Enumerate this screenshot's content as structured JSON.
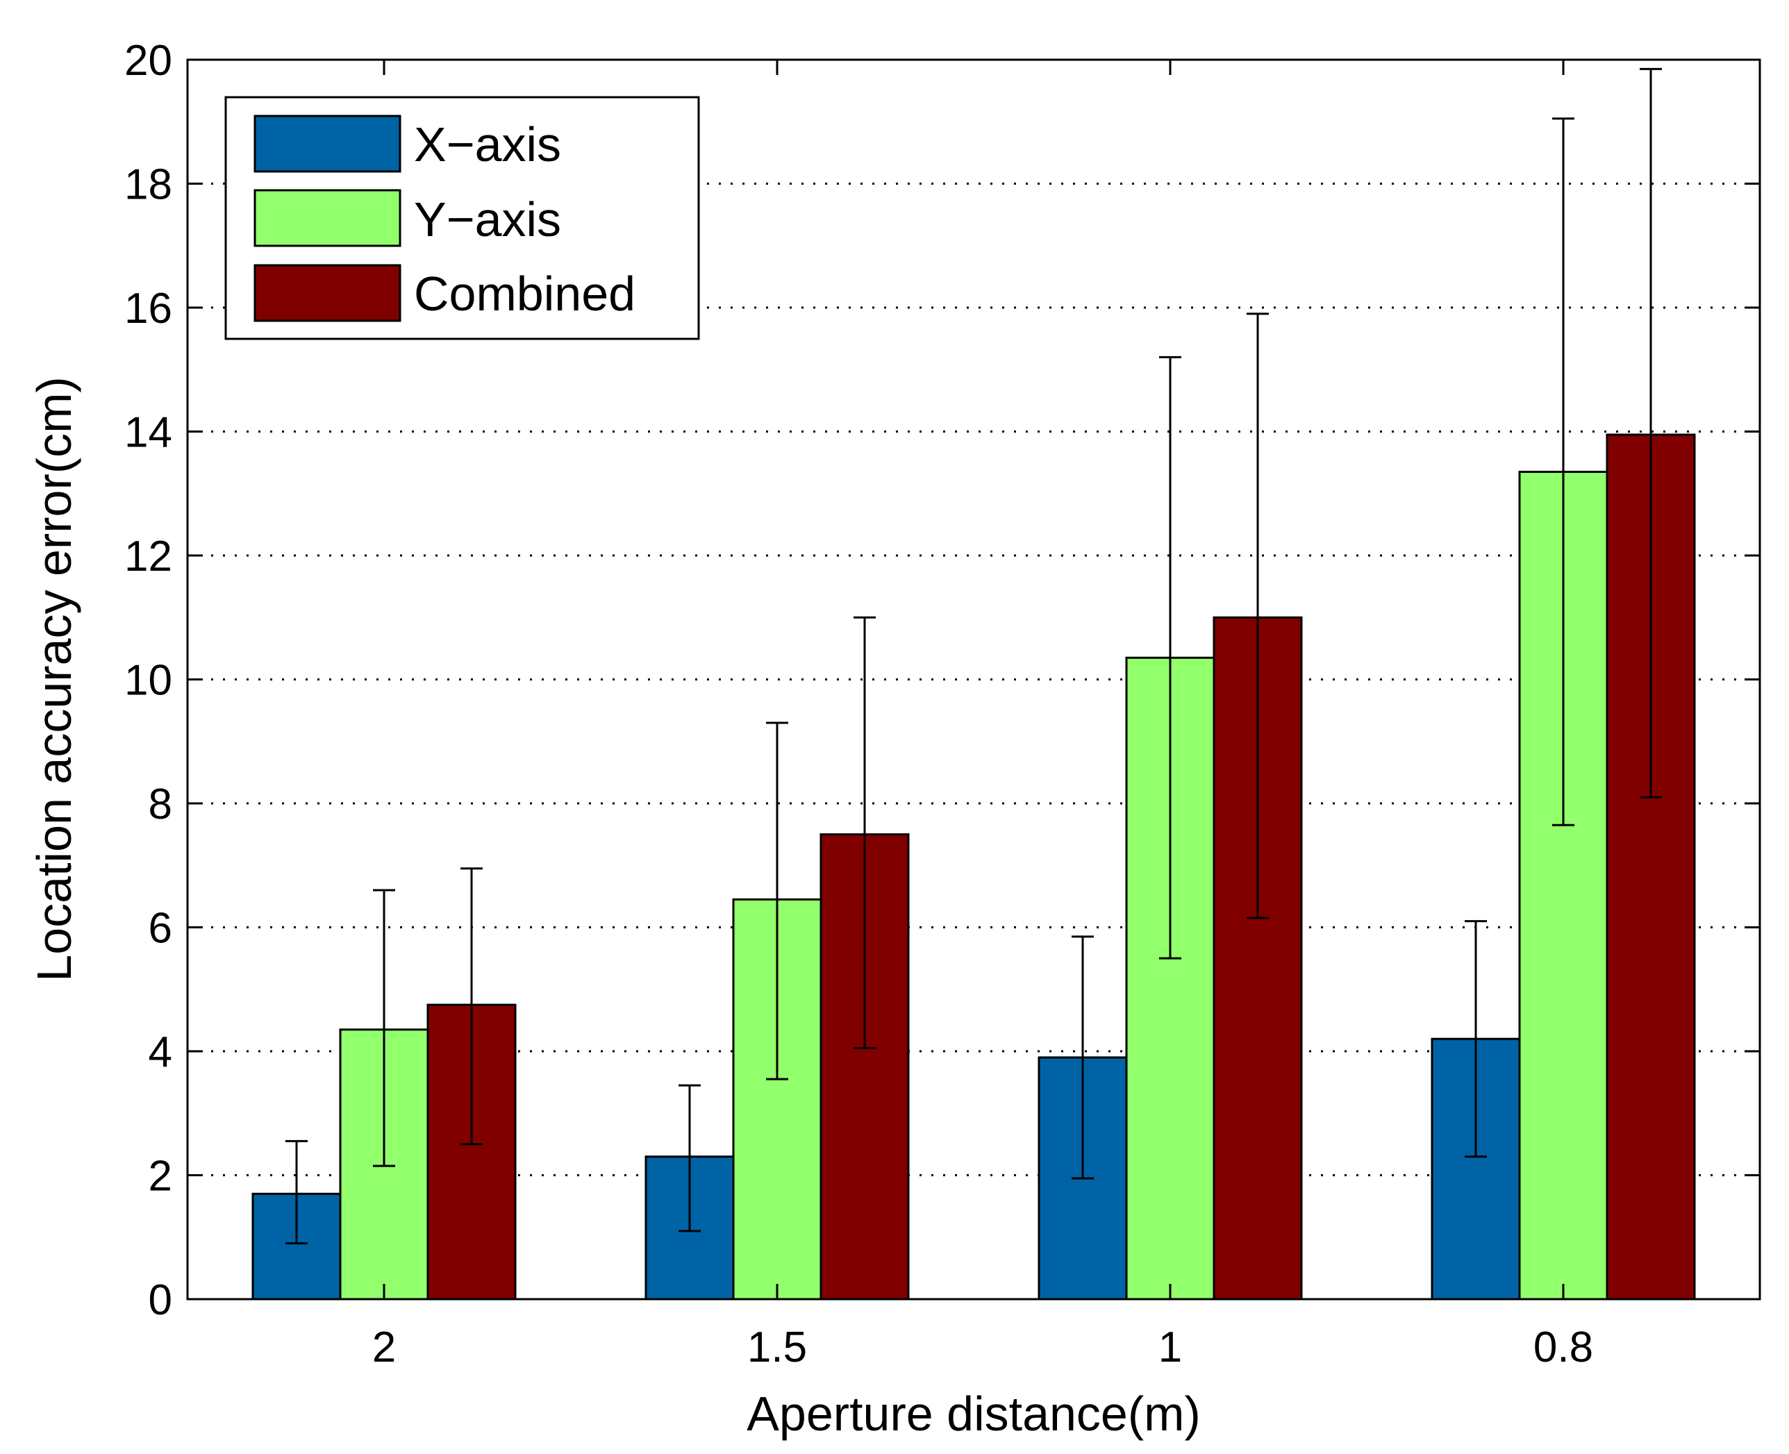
{
  "chart_data": {
    "type": "bar",
    "title": "",
    "xlabel": "Aperture distance(m)",
    "ylabel": "Location accuracy error(cm)",
    "categories": [
      "2",
      "1.5",
      "1",
      "0.8"
    ],
    "ylim": [
      0,
      20
    ],
    "yticks": [
      "0",
      "2",
      "4",
      "6",
      "8",
      "10",
      "12",
      "14",
      "16",
      "18",
      "20"
    ],
    "grid": "y-dotted",
    "legend_position": "top-left",
    "series": [
      {
        "name": "X−axis",
        "color": "#0063a6",
        "values": [
          1.7,
          2.3,
          3.9,
          4.2
        ],
        "error_low": [
          0.9,
          1.1,
          1.95,
          2.3
        ],
        "error_high": [
          2.55,
          3.45,
          5.85,
          6.1
        ]
      },
      {
        "name": "Y−axis",
        "color": "#92ff6c",
        "values": [
          4.35,
          6.45,
          10.35,
          13.35
        ],
        "error_low": [
          2.15,
          3.55,
          5.5,
          7.65
        ],
        "error_high": [
          6.6,
          9.3,
          15.2,
          19.05
        ]
      },
      {
        "name": "Combined",
        "color": "#800000",
        "values": [
          4.75,
          7.5,
          11.0,
          13.95
        ],
        "error_low": [
          2.5,
          4.05,
          6.15,
          8.1
        ],
        "error_high": [
          6.95,
          11.0,
          15.9,
          19.85
        ]
      }
    ]
  }
}
